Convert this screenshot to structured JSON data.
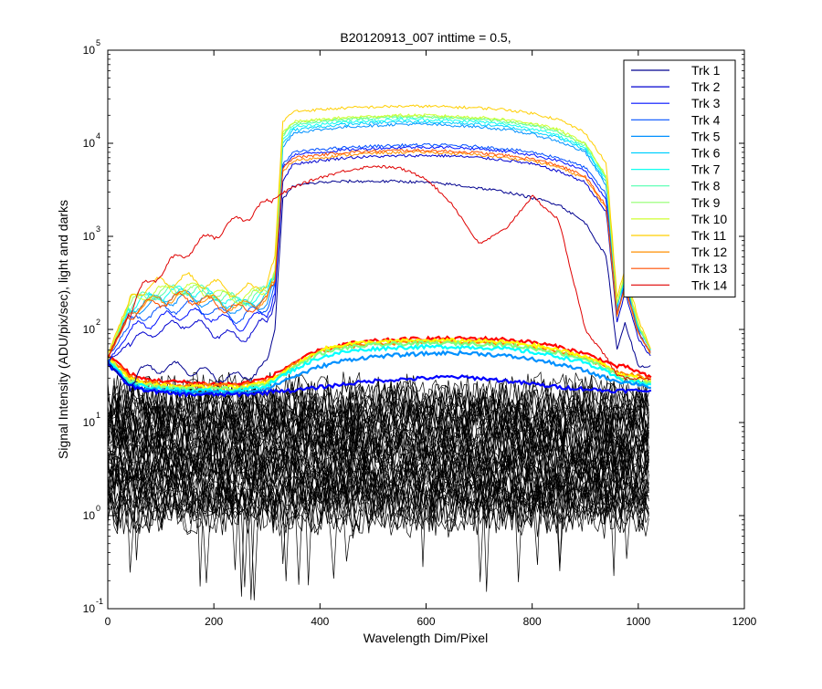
{
  "chart_data": {
    "type": "line",
    "title": "B20120913_007 inttime = 0.5,",
    "xlabel": "Wavelength Dim/Pixel",
    "ylabel": "Signal Intensity (ADU/pix/sec), light and darks",
    "x_scale": "linear",
    "y_scale": "log",
    "xlim": [
      0,
      1200
    ],
    "ylim": [
      0.1,
      100000
    ],
    "x_ticks": [
      "0",
      "200",
      "400",
      "600",
      "800",
      "1000",
      "1200"
    ],
    "y_ticks": [
      {
        "base": "10",
        "exp": "-1"
      },
      {
        "base": "10",
        "exp": "0"
      },
      {
        "base": "10",
        "exp": "1"
      },
      {
        "base": "10",
        "exp": "2"
      },
      {
        "base": "10",
        "exp": "3"
      },
      {
        "base": "10",
        "exp": "4"
      },
      {
        "base": "10",
        "exp": "5"
      }
    ],
    "grid": false,
    "legend_position": "top-right",
    "x": [
      0,
      40,
      60,
      100,
      150,
      200,
      250,
      300,
      315,
      330,
      350,
      400,
      450,
      500,
      550,
      600,
      650,
      700,
      750,
      800,
      850,
      900,
      940,
      960,
      975,
      1000,
      1024
    ],
    "series": [
      {
        "name": "Trk 1",
        "color": "#00008f",
        "values": [
          45,
          25,
          35,
          40,
          38,
          32,
          30,
          40,
          100,
          2500,
          3500,
          3800,
          3900,
          3900,
          3900,
          3800,
          3600,
          3300,
          3000,
          2600,
          2200,
          1400,
          600,
          60,
          120,
          40,
          40
        ]
      },
      {
        "name": "Trk 2",
        "color": "#0000cf",
        "values": [
          45,
          70,
          80,
          100,
          120,
          95,
          80,
          120,
          200,
          4000,
          6000,
          6500,
          7000,
          7200,
          7300,
          7400,
          7300,
          7000,
          6600,
          6000,
          5000,
          3800,
          1800,
          120,
          250,
          80,
          50
        ]
      },
      {
        "name": "Trk 3",
        "color": "#0010ff",
        "values": [
          45,
          90,
          110,
          130,
          150,
          140,
          110,
          150,
          250,
          5500,
          7500,
          8000,
          8500,
          8800,
          9000,
          9100,
          9000,
          8700,
          8200,
          7500,
          6500,
          5000,
          2500,
          140,
          300,
          90,
          55
        ]
      },
      {
        "name": "Trk 4",
        "color": "#0050ff",
        "values": [
          50,
          110,
          140,
          160,
          180,
          160,
          130,
          180,
          300,
          6000,
          8000,
          8600,
          9000,
          9300,
          9500,
          9600,
          9500,
          9200,
          8700,
          8000,
          7000,
          5500,
          2800,
          150,
          320,
          95,
          55
        ]
      },
      {
        "name": "Trk 5",
        "color": "#0090ff",
        "values": [
          50,
          140,
          170,
          200,
          220,
          190,
          160,
          200,
          330,
          9000,
          13000,
          14000,
          15000,
          15500,
          16000,
          16000,
          15500,
          15000,
          14000,
          12500,
          10500,
          8000,
          3500,
          170,
          350,
          100,
          60
        ]
      },
      {
        "name": "Trk 6",
        "color": "#00d0ff",
        "values": [
          50,
          160,
          190,
          220,
          240,
          210,
          180,
          230,
          360,
          10000,
          14000,
          15000,
          16000,
          16500,
          17000,
          17000,
          16500,
          16000,
          15000,
          13500,
          11500,
          8500,
          3800,
          180,
          360,
          105,
          60
        ]
      },
      {
        "name": "Trk 7",
        "color": "#10ffef",
        "values": [
          50,
          170,
          200,
          240,
          260,
          230,
          190,
          250,
          380,
          11000,
          15000,
          16000,
          17000,
          17500,
          18000,
          18000,
          17500,
          17000,
          16000,
          14500,
          12000,
          9000,
          4000,
          185,
          370,
          110,
          60
        ]
      },
      {
        "name": "Trk 8",
        "color": "#50ffaf",
        "values": [
          50,
          180,
          210,
          250,
          270,
          240,
          200,
          260,
          400,
          12000,
          16000,
          17000,
          18000,
          18500,
          19000,
          19000,
          18500,
          18000,
          17000,
          15500,
          13000,
          9500,
          4200,
          190,
          380,
          110,
          60
        ]
      },
      {
        "name": "Trk 9",
        "color": "#90ff6f",
        "values": [
          50,
          185,
          215,
          255,
          275,
          245,
          205,
          265,
          410,
          12500,
          16500,
          17500,
          18500,
          19000,
          19500,
          19500,
          19000,
          18500,
          17500,
          16000,
          13500,
          9800,
          4300,
          190,
          385,
          110,
          60
        ]
      },
      {
        "name": "Trk 10",
        "color": "#cfff30",
        "values": [
          50,
          190,
          220,
          260,
          280,
          250,
          210,
          270,
          420,
          13000,
          17000,
          18000,
          19000,
          19500,
          20000,
          20000,
          19500,
          19000,
          18000,
          16500,
          14000,
          10000,
          4400,
          195,
          390,
          115,
          60
        ]
      },
      {
        "name": "Trk 11",
        "color": "#ffcf00",
        "values": [
          55,
          200,
          260,
          320,
          350,
          300,
          250,
          320,
          600,
          17000,
          22000,
          23000,
          24000,
          24500,
          25000,
          25000,
          24500,
          24000,
          23000,
          21000,
          18000,
          13000,
          6000,
          220,
          450,
          130,
          60
        ]
      },
      {
        "name": "Trk 12",
        "color": "#ff8f00",
        "values": [
          50,
          150,
          180,
          210,
          230,
          200,
          170,
          210,
          340,
          5000,
          6500,
          7000,
          7500,
          7800,
          8000,
          8000,
          7800,
          7500,
          7000,
          6500,
          5500,
          4200,
          2000,
          140,
          290,
          90,
          55
        ]
      },
      {
        "name": "Trk 13",
        "color": "#ff4f00",
        "values": [
          50,
          140,
          170,
          200,
          220,
          190,
          160,
          200,
          320,
          5500,
          7000,
          7500,
          8000,
          8200,
          8400,
          8400,
          8200,
          7900,
          7400,
          6800,
          5800,
          4400,
          2100,
          145,
          295,
          92,
          55
        ]
      },
      {
        "name": "Trk 14",
        "color": "#df0000",
        "values": [
          50,
          150,
          250,
          420,
          700,
          1050,
          1550,
          2200,
          2550,
          2900,
          3400,
          4300,
          5100,
          5700,
          5400,
          4200,
          2200,
          820,
          1200,
          2700,
          1500,
          100,
          50,
          32,
          30,
          30,
          30
        ]
      }
    ],
    "dark_traces": {
      "color": "#000000",
      "count": 52,
      "x_range": [
        0,
        1024
      ],
      "level_range": [
        1,
        20
      ],
      "min_spikes": 0.12
    },
    "light_floor_traces": [
      {
        "color": "#ff0000",
        "values": [
          55,
          34,
          30,
          28,
          27,
          26,
          26,
          30,
          33,
          37,
          44,
          60,
          70,
          75,
          78,
          80,
          80,
          80,
          78,
          73,
          65,
          55,
          45,
          40,
          40,
          35,
          30
        ]
      },
      {
        "color": "#ff7f00",
        "values": [
          52,
          32,
          28,
          26,
          25,
          25,
          25,
          28,
          31,
          35,
          42,
          58,
          66,
          70,
          72,
          74,
          74,
          73,
          71,
          66,
          58,
          50,
          40,
          35,
          34,
          32,
          28
        ]
      },
      {
        "color": "#ffff00",
        "values": [
          50,
          30,
          27,
          25,
          24,
          24,
          24,
          27,
          30,
          34,
          40,
          60,
          70,
          73,
          75,
          76,
          76,
          75,
          73,
          68,
          60,
          51,
          41,
          34,
          32,
          30,
          27
        ]
      },
      {
        "color": "#7fff7f",
        "values": [
          48,
          28,
          26,
          24,
          23,
          23,
          23,
          26,
          29,
          33,
          39,
          55,
          64,
          68,
          70,
          71,
          71,
          70,
          68,
          63,
          56,
          48,
          38,
          32,
          30,
          28,
          26
        ]
      },
      {
        "color": "#00ffff",
        "values": [
          46,
          27,
          25,
          23,
          22,
          22,
          22,
          25,
          28,
          32,
          37,
          50,
          58,
          62,
          64,
          65,
          65,
          64,
          62,
          57,
          51,
          44,
          35,
          30,
          28,
          27,
          25
        ]
      },
      {
        "color": "#0090ff",
        "values": [
          44,
          26,
          24,
          22,
          21,
          21,
          21,
          23,
          25,
          28,
          31,
          40,
          47,
          51,
          53,
          55,
          56,
          55,
          52,
          48,
          42,
          36,
          30,
          28,
          27,
          26,
          24
        ]
      },
      {
        "color": "#0000ff",
        "values": [
          42,
          25,
          23,
          21,
          20,
          20,
          20,
          21,
          22,
          22,
          22,
          24,
          26,
          28,
          29,
          30,
          31,
          30,
          28,
          26,
          24,
          23,
          22,
          22,
          22,
          22,
          22
        ]
      }
    ]
  }
}
